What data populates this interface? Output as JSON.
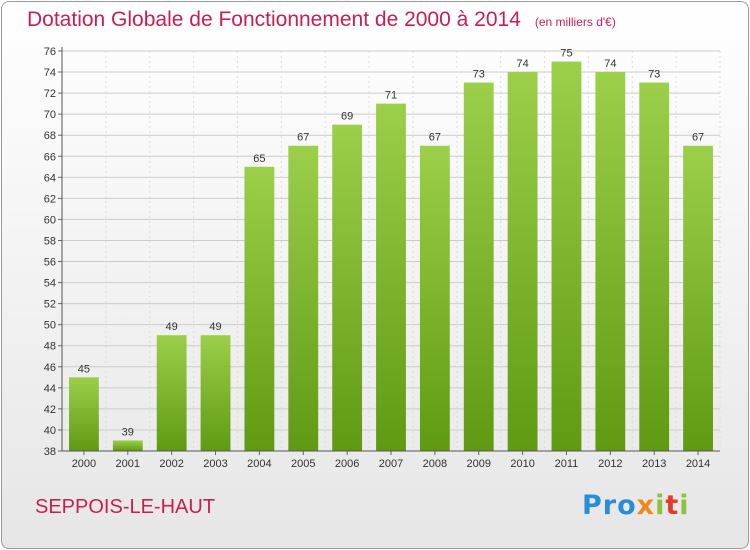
{
  "header": {
    "title": "Dotation Globale de Fonctionnement de 2000 à 2014",
    "unit": "(en milliers d'€)"
  },
  "footer": {
    "location": "SEPPOIS-LE-HAUT",
    "brand": "Proxiti"
  },
  "colors": {
    "title": "#c71f52",
    "bar_top": "#9ccf4a",
    "bar_bottom": "#5f9a12",
    "grid": "#cccccc"
  },
  "chart_data": {
    "type": "bar",
    "title": "Dotation Globale de Fonctionnement de 2000 à 2014",
    "categories": [
      "2000",
      "2001",
      "2002",
      "2003",
      "2004",
      "2005",
      "2006",
      "2007",
      "2008",
      "2009",
      "2010",
      "2011",
      "2012",
      "2013",
      "2014"
    ],
    "values": [
      45,
      39,
      49,
      49,
      65,
      67,
      69,
      71,
      67,
      73,
      74,
      75,
      74,
      73,
      67
    ],
    "ylim": [
      38,
      76
    ],
    "yticks": [
      38,
      40,
      42,
      44,
      46,
      48,
      50,
      52,
      54,
      56,
      58,
      60,
      62,
      64,
      66,
      68,
      70,
      72,
      74,
      76
    ],
    "grid": true,
    "xlabel": "",
    "ylabel": ""
  }
}
